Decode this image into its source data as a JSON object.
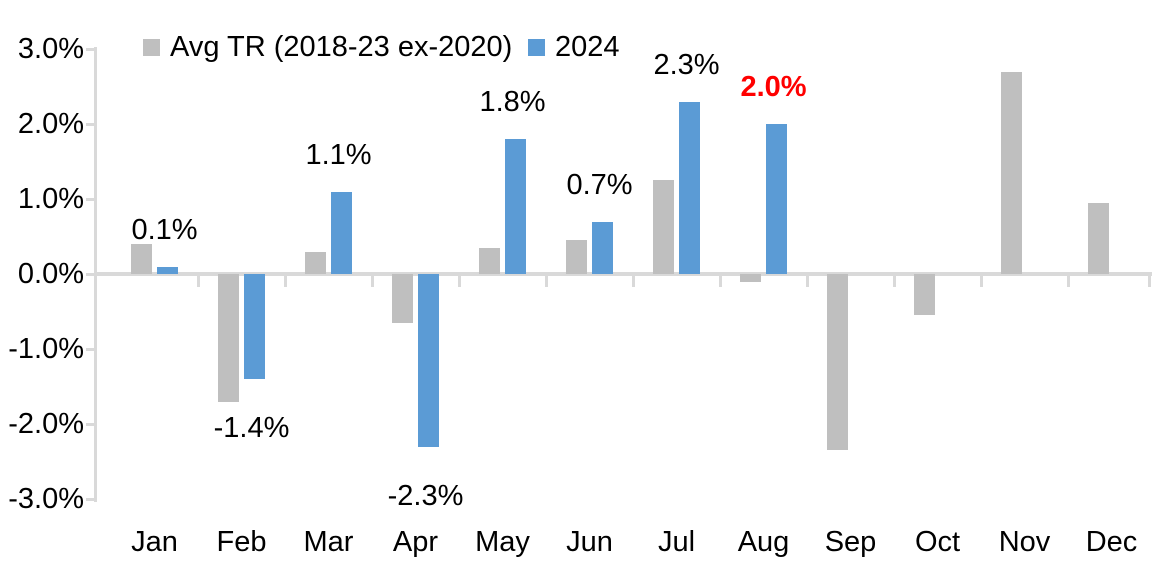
{
  "chart_data": {
    "type": "bar",
    "title": "",
    "xlabel": "",
    "ylabel": "",
    "categories": [
      "Jan",
      "Feb",
      "Mar",
      "Apr",
      "May",
      "Jun",
      "Jul",
      "Aug",
      "Sep",
      "Oct",
      "Nov",
      "Dec"
    ],
    "series": [
      {
        "name": "Avg TR (2018-23 ex-2020)",
        "color": "#bfbfbf",
        "values": [
          0.4,
          -1.7,
          0.3,
          -0.65,
          0.35,
          0.45,
          1.25,
          -0.1,
          -2.35,
          -0.55,
          2.7,
          0.95
        ]
      },
      {
        "name": "2024",
        "color": "#5b9bd5",
        "values": [
          0.1,
          -1.4,
          1.1,
          -2.3,
          1.8,
          0.7,
          2.3,
          2.0,
          null,
          null,
          null,
          null
        ]
      }
    ],
    "data_labels": [
      "0.1%",
      "-1.4%",
      "1.1%",
      "-2.3%",
      "1.8%",
      "0.7%",
      "2.3%",
      "2.0%",
      null,
      null,
      null,
      null
    ],
    "data_label_highlight": {
      "month": "Aug",
      "text": "2.0%",
      "color": "#ff0000",
      "bold": true
    },
    "y_axis": {
      "ticks": [
        "3.0%",
        "2.0%",
        "1.0%",
        "0.0%",
        "-1.0%",
        "-2.0%",
        "-3.0%"
      ],
      "lim": [
        -3.0,
        3.0
      ]
    },
    "grid": false,
    "legend_position": "top",
    "axis_color": "#d9d9d9",
    "text_color": "#000000"
  }
}
